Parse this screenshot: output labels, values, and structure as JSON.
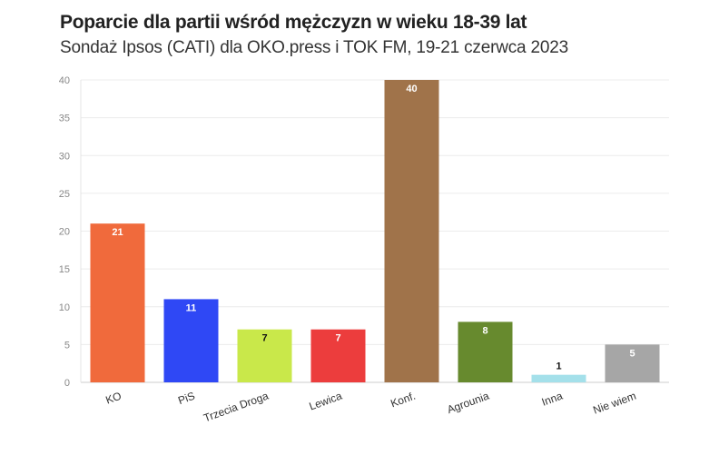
{
  "chart_data": {
    "type": "bar",
    "title": "Poparcie dla partii wśród mężczyzn w wieku 18-39 lat",
    "subtitle": "Sondaż Ipsos (CATI) dla OKO.press i TOK FM, 19-21 czerwca 2023",
    "xlabel": "",
    "ylabel": "",
    "ylim": [
      0,
      40
    ],
    "yticks": [
      0,
      5,
      10,
      15,
      20,
      25,
      30,
      35,
      40
    ],
    "grid": true,
    "categories": [
      "KO",
      "PiS",
      "Trzecia Droga",
      "Lewica",
      "Konf.",
      "Agrounia",
      "Inna",
      "Nie wiem"
    ],
    "values": [
      21,
      11,
      7,
      7,
      40,
      8,
      1,
      5
    ],
    "colors": [
      "#f06a3c",
      "#2f48f5",
      "#c9e84a",
      "#ec3d3d",
      "#a0734a",
      "#678a2e",
      "#a4e0ea",
      "#a6a6a6"
    ],
    "label_colors": [
      "#ffffff",
      "#ffffff",
      "#111111",
      "#ffffff",
      "#ffffff",
      "#ffffff",
      "#111111",
      "#ffffff"
    ]
  }
}
